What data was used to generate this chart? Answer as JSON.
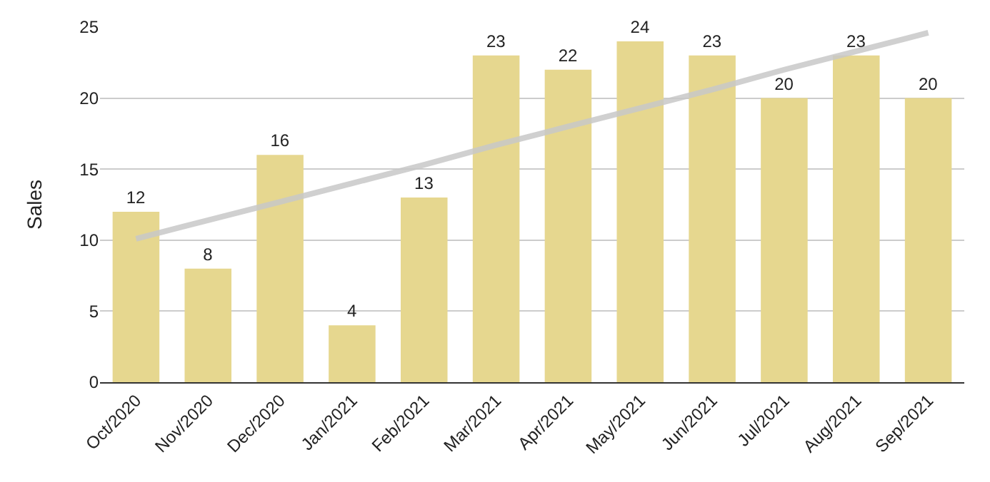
{
  "chart_data": {
    "type": "bar",
    "ylabel": "Sales",
    "categories": [
      "Oct/2020",
      "Nov/2020",
      "Dec/2020",
      "Jan/2021",
      "Feb/2021",
      "Mar/2021",
      "Apr/2021",
      "May/2021",
      "Jun/2021",
      "Jul/2021",
      "Aug/2021",
      "Sep/2021"
    ],
    "series": [
      {
        "color": "#e6d78f",
        "values": [
          12,
          8,
          16,
          4,
          13,
          23,
          22,
          24,
          23,
          20,
          23,
          20
        ],
        "value_labels": [
          "12",
          "8",
          "16",
          "4",
          "13",
          "23",
          "22",
          "24",
          "23",
          "20",
          "23",
          "20"
        ]
      },
      {
        "type": "line",
        "color": "#c8c8c8",
        "values": [
          10.1,
          11.4,
          12.7,
          14.0,
          15.3,
          16.7,
          18.0,
          19.3,
          20.6,
          22.0,
          23.3,
          24.6
        ]
      }
    ],
    "ylim": [
      0,
      25
    ],
    "yticks": [
      0,
      5,
      10,
      15,
      20,
      25
    ],
    "grid": "y"
  }
}
